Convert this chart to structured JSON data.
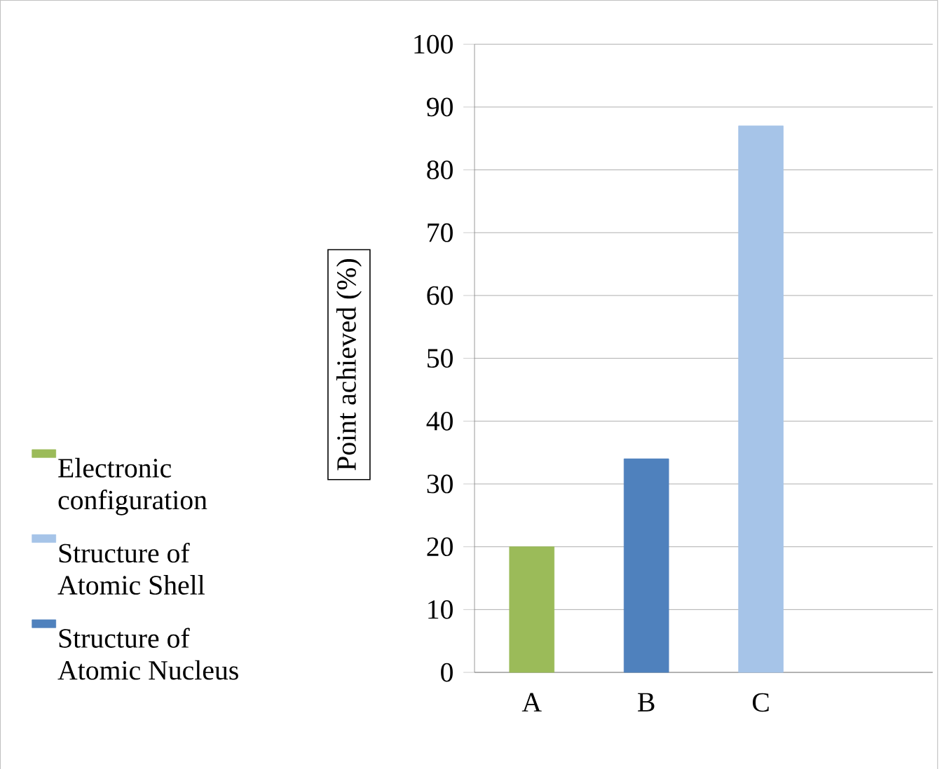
{
  "chart_data": {
    "type": "bar",
    "ylabel": "Point achieved (%)",
    "categories": [
      "A",
      "B",
      "C",
      null
    ],
    "series": [
      {
        "name": "Electronic configuration",
        "color": "#9bbb59",
        "values": [
          20,
          null,
          null,
          null
        ]
      },
      {
        "name": "Structure of Atomic Shell",
        "color": "#a6c4e8",
        "values": [
          null,
          null,
          87,
          null
        ]
      },
      {
        "name": "Structure of Atomic Nucleus",
        "color": "#4f81bd",
        "values": [
          null,
          34,
          null,
          null
        ]
      }
    ],
    "ylim": [
      0,
      100
    ],
    "yticks": [
      0,
      10,
      20,
      30,
      40,
      50,
      60,
      70,
      80,
      90,
      100
    ],
    "grid": "y",
    "legend": "left"
  }
}
